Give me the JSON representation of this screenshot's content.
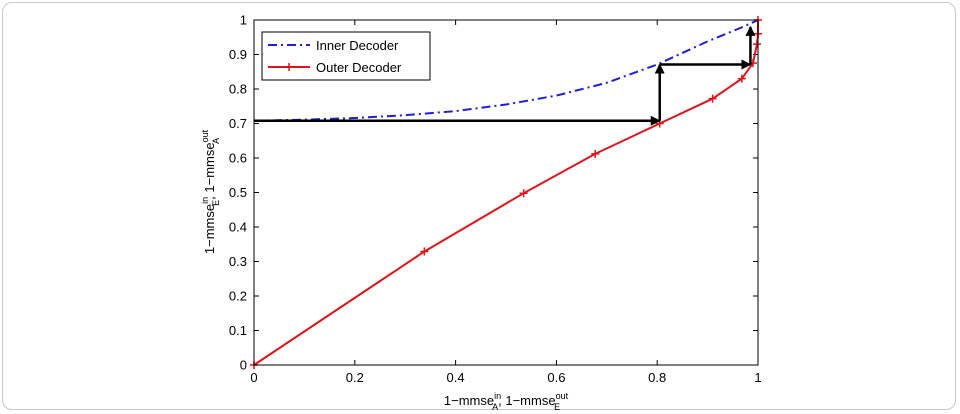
{
  "chart_data": {
    "type": "line",
    "title": "",
    "xlim": [
      0,
      1
    ],
    "ylim": [
      0,
      1
    ],
    "x_ticks": [
      "0",
      "0.2",
      "0.4",
      "0.6",
      "0.8",
      "1"
    ],
    "y_ticks": [
      "0",
      "0.1",
      "0.2",
      "0.3",
      "0.4",
      "0.5",
      "0.6",
      "0.7",
      "0.8",
      "0.9",
      "1"
    ],
    "xlabel": {
      "base1": "1−mmse",
      "sup1": "in",
      "sub1": "A",
      "mid": ", 1−mmse",
      "sup2": "out",
      "sub2": "E"
    },
    "ylabel": {
      "base1": "1−mmse",
      "sup1": "in",
      "sub1": "E",
      "mid": ", 1−mmse",
      "sup2": "out",
      "sub2": "A"
    },
    "legend_position": "top-left",
    "grid": false,
    "series": [
      {
        "name": "Inner Decoder",
        "color": "#1f1fd6",
        "style": "dash-dot",
        "x": [
          0,
          0.1,
          0.2,
          0.3,
          0.4,
          0.5,
          0.6,
          0.7,
          0.8,
          0.9,
          0.97,
          1.0
        ],
        "y": [
          0.708,
          0.711,
          0.716,
          0.724,
          0.736,
          0.755,
          0.781,
          0.818,
          0.871,
          0.938,
          0.98,
          1.0
        ]
      },
      {
        "name": "Outer Decoder",
        "color": "#e0141c",
        "style": "solid-plus",
        "x": [
          0,
          0.338,
          0.535,
          0.677,
          0.805,
          0.91,
          0.968,
          0.99,
          0.998,
          1.0,
          1.0
        ],
        "y": [
          0,
          0.329,
          0.498,
          0.612,
          0.7,
          0.772,
          0.83,
          0.875,
          0.93,
          0.96,
          1.0
        ]
      }
    ],
    "trajectory": {
      "color": "#000000",
      "points": [
        [
          0,
          0.708
        ],
        [
          0.805,
          0.708
        ],
        [
          0.805,
          0.871
        ],
        [
          0.985,
          0.871
        ],
        [
          0.985,
          0.98
        ]
      ]
    }
  }
}
